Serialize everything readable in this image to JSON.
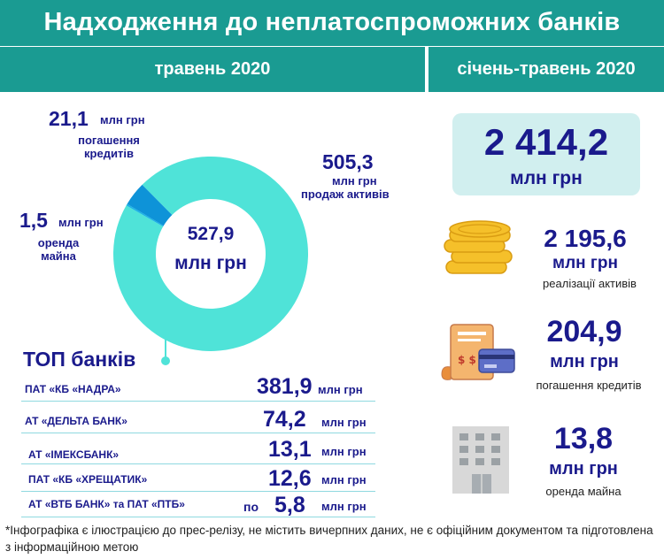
{
  "title": "Надходження до неплатоспроможних банків",
  "period_month": "травень 2020",
  "period_range": "січень-травень 2020",
  "donut": {
    "center_value": "527,9",
    "center_unit": "млн грн",
    "segments": [
      {
        "value": "505,3",
        "value_num": 505.3,
        "unit": "млн грн",
        "label": "продаж активів",
        "color": "#4fe3d8"
      },
      {
        "value": "21,1",
        "value_num": 21.1,
        "unit": "млн грн",
        "label": "погашення кредитів",
        "color": "#0e93d8"
      },
      {
        "value": "1,5",
        "value_num": 1.5,
        "unit": "млн грн",
        "label_line1": "оренда",
        "label_line2": "майна",
        "color": "#1bb4e6"
      }
    ],
    "repay_label_line1": "погашення",
    "repay_label_line2": "кредитів"
  },
  "top_banks": {
    "heading": "ТОП банків",
    "rows": [
      {
        "name": "ПАТ «КБ «НАДРА»",
        "prefix": "",
        "value": "381,9",
        "unit": "млн грн"
      },
      {
        "name": "АТ «ДЕЛЬТА БАНК»",
        "prefix": "",
        "value": "74,2",
        "unit": "млн грн"
      },
      {
        "name": "АТ «ІМЕКСБАНК»",
        "prefix": "",
        "value": "13,1",
        "unit": "млн грн"
      },
      {
        "name": "ПАТ «КБ «ХРЕЩАТИК»",
        "prefix": "",
        "value": "12,6",
        "unit": "млн грн"
      },
      {
        "name": "АТ «ВТБ БАНК» та ПАТ «ПТБ»",
        "prefix": "по",
        "value": "5,8",
        "unit": "млн грн"
      }
    ]
  },
  "totals": {
    "total_value": "2 414,2",
    "total_unit": "млн грн",
    "items": [
      {
        "icon": "coins-icon",
        "value": "2 195,6",
        "unit": "млн грн",
        "label": "реалізації активів"
      },
      {
        "icon": "receipt-card-icon",
        "value": "204,9",
        "unit": "млн грн",
        "label": "погашення кредитів"
      },
      {
        "icon": "building-icon",
        "value": "13,8",
        "unit": "млн грн",
        "label": "оренда майна"
      }
    ]
  },
  "footnote": "*Інфографіка є ілюстрацією до прес-релізу, не містить вичерпних даних, не є офіційним документом та підготовлена з інформаційною метою"
}
